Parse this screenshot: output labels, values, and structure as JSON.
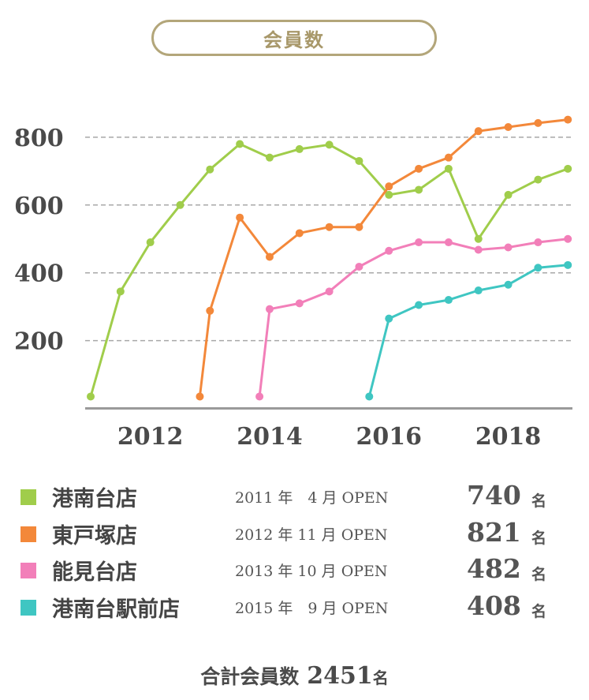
{
  "title": "会員数",
  "chart_data": {
    "type": "line",
    "ylim": [
      0,
      870
    ],
    "xlim": [
      2011.0,
      2019.05
    ],
    "yticks": [
      200,
      400,
      600,
      800
    ],
    "xticks": [
      "2012",
      "2014",
      "2016",
      "2018"
    ],
    "grid": true,
    "series": [
      {
        "name": "港南台店",
        "color": "#a0cd4b",
        "x": [
          2011.0,
          2011.5,
          2012.0,
          2012.5,
          2013.0,
          2013.5,
          2014.0,
          2014.5,
          2015.0,
          2015.5,
          2016.0,
          2016.5,
          2017.0,
          2017.5,
          2018.0,
          2018.5,
          2019.0
        ],
        "y": [
          35,
          345,
          490,
          600,
          705,
          780,
          740,
          765,
          778,
          730,
          630,
          645,
          707,
          500,
          630,
          675,
          707
        ]
      },
      {
        "name": "東戸塚店",
        "color": "#f3883a",
        "x": [
          2012.83,
          2013.0,
          2013.5,
          2014.0,
          2014.5,
          2015.0,
          2015.5,
          2016.0,
          2016.5,
          2017.0,
          2017.5,
          2018.0,
          2018.5,
          2019.0
        ],
        "y": [
          35,
          288,
          563,
          447,
          517,
          535,
          535,
          655,
          707,
          740,
          818,
          830,
          842,
          852
        ]
      },
      {
        "name": "能見台店",
        "color": "#f27fb9",
        "x": [
          2013.83,
          2014.0,
          2014.5,
          2015.0,
          2015.5,
          2016.0,
          2016.5,
          2017.0,
          2017.5,
          2018.0,
          2018.5,
          2019.0
        ],
        "y": [
          35,
          293,
          310,
          345,
          418,
          465,
          490,
          490,
          468,
          475,
          490,
          500
        ]
      },
      {
        "name": "港南台駅前店",
        "color": "#3fc6c2",
        "x": [
          2015.67,
          2016.0,
          2016.5,
          2017.0,
          2017.5,
          2018.0,
          2018.5,
          2019.0
        ],
        "y": [
          35,
          265,
          305,
          320,
          348,
          365,
          415,
          423
        ]
      }
    ]
  },
  "legend": [
    {
      "name": "港南台店",
      "open": "2011 年　4 月 OPEN",
      "count": "740",
      "unit": "名"
    },
    {
      "name": "東戸塚店",
      "open": "2012 年 11 月 OPEN",
      "count": "821",
      "unit": "名"
    },
    {
      "name": "能見台店",
      "open": "2013 年 10 月 OPEN",
      "count": "482",
      "unit": "名"
    },
    {
      "name": "港南台駅前店",
      "open": "2015 年　9 月 OPEN",
      "count": "408",
      "unit": "名"
    }
  ],
  "total": {
    "label": "合計会員数",
    "value": "2451",
    "unit": "名"
  }
}
